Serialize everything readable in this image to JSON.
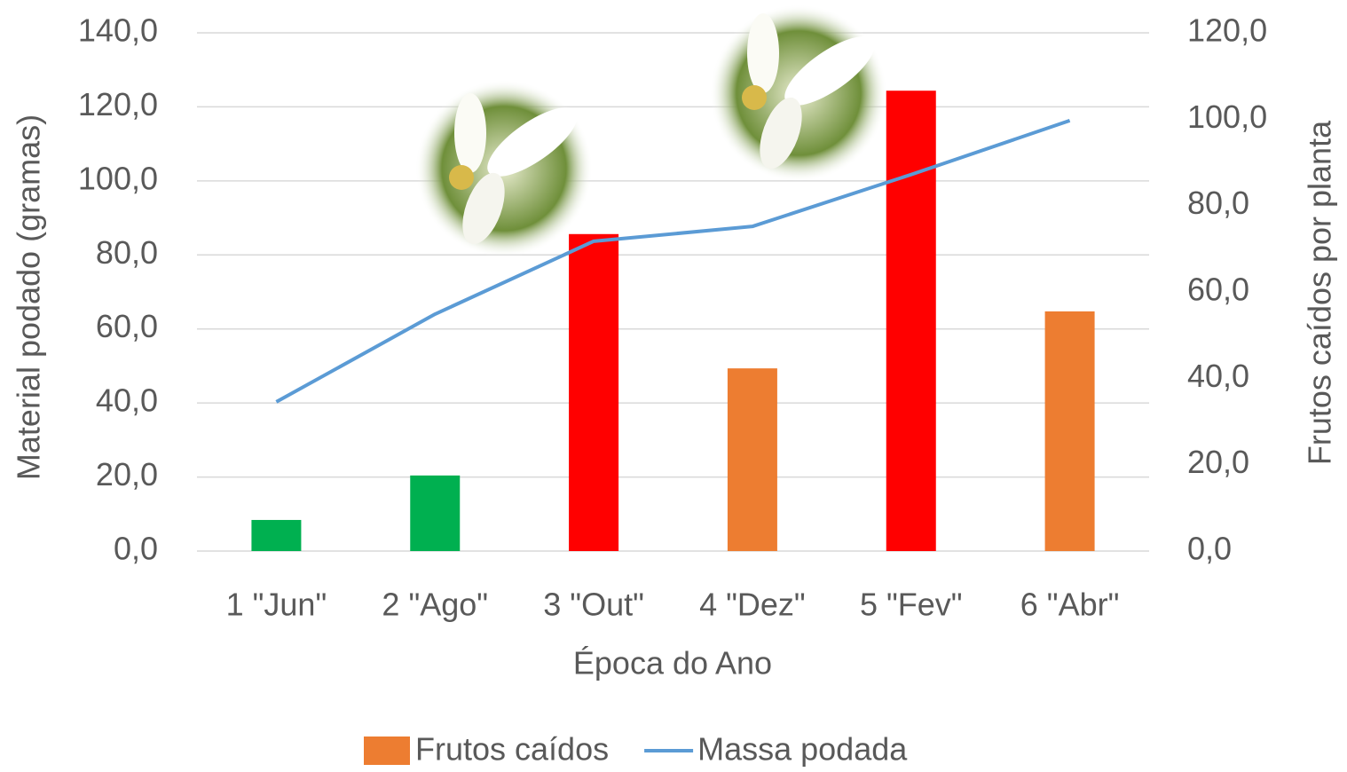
{
  "chart_data": {
    "type": "combo",
    "x_label": "Época do Ano",
    "y_label": "Material podado (gramas)",
    "y2_label": "Frutos caídos por planta",
    "categories": [
      "1 \"Jun\"",
      "2 \"Ago\"",
      "3 \"Out\"",
      "4 \"Dez\"",
      "5 \"Fev\"",
      "6 \"Abr\""
    ],
    "series": [
      {
        "name": "Frutos caídos",
        "type": "bar",
        "axis": "y2",
        "color": "#ed7d31",
        "colors": [
          "#00b050",
          "#00b050",
          "#ff0000",
          "#ed7d31",
          "#ff0000",
          "#ed7d31"
        ],
        "values": [
          7.2,
          17.5,
          73.4,
          42.3,
          106.6,
          55.5
        ]
      },
      {
        "name": "Massa podada",
        "type": "line",
        "axis": "y",
        "color": "#5b9bd5",
        "values": [
          40.3,
          64.0,
          83.7,
          87.7,
          101.7,
          116.3
        ]
      }
    ],
    "ylim": [
      0,
      140
    ],
    "yticks": [
      {
        "value": 0,
        "label": "0,0"
      },
      {
        "value": 20,
        "label": "20,0"
      },
      {
        "value": 40,
        "label": "40,0"
      },
      {
        "value": 60,
        "label": "60,0"
      },
      {
        "value": 80,
        "label": "80,0"
      },
      {
        "value": 100,
        "label": "100,0"
      },
      {
        "value": 120,
        "label": "120,0"
      },
      {
        "value": 140,
        "label": "140,0"
      }
    ],
    "y2lim": [
      0,
      120
    ],
    "y2ticks": [
      {
        "value": 0,
        "label": "0,0"
      },
      {
        "value": 20,
        "label": "20,0"
      },
      {
        "value": 40,
        "label": "40,0"
      },
      {
        "value": 60,
        "label": "60,0"
      },
      {
        "value": 80,
        "label": "80,0"
      },
      {
        "value": 100,
        "label": "100,0"
      },
      {
        "value": 120,
        "label": "120,0"
      }
    ],
    "grid": true,
    "legend": "bottom"
  }
}
